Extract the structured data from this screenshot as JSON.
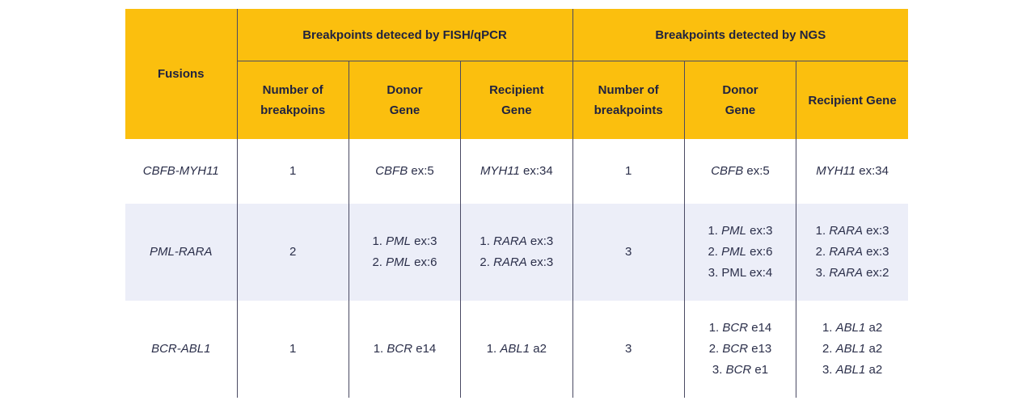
{
  "header": {
    "fusions": "Fusions",
    "group_fish": "Breakpoints deteced by FISH/qPCR",
    "group_ngs": "Breakpoints detected by NGS",
    "fish_cols": [
      {
        "l1": "Number of",
        "l2": "breakpoins"
      },
      {
        "l1": "Donor",
        "l2": "Gene"
      },
      {
        "l1": "Recipient",
        "l2": "Gene"
      }
    ],
    "ngs_cols": [
      {
        "l1": "Number of",
        "l2": "breakpoints"
      },
      {
        "l1": "Donor",
        "l2": "Gene"
      },
      {
        "l1": "Recipient Gene",
        "l2": ""
      }
    ]
  },
  "rows": [
    {
      "fusion": "CBFB-MYH11",
      "fish_n": "1",
      "fish_donor": [
        {
          "gene": "CBFB",
          "site": "ex:5"
        }
      ],
      "fish_recipient": [
        {
          "gene": "MYH11",
          "site": "ex:34"
        }
      ],
      "ngs_n": "1",
      "ngs_donor": [
        {
          "gene": "CBFB",
          "site": "ex:5"
        }
      ],
      "ngs_recipient": [
        {
          "gene": "MYH11",
          "site": "ex:34"
        }
      ]
    },
    {
      "fusion": "PML-RARA",
      "fish_n": "2",
      "fish_donor": [
        {
          "num": "1.",
          "gene": "PML",
          "site": "ex:3"
        },
        {
          "num": "2.",
          "gene": "PML",
          "site": "ex:6"
        }
      ],
      "fish_recipient": [
        {
          "num": "1.",
          "gene": "RARA",
          "site": "ex:3"
        },
        {
          "num": "2.",
          "gene": "RARA",
          "site": "ex:3"
        }
      ],
      "ngs_n": "3",
      "ngs_donor": [
        {
          "num": "1.",
          "gene": "PML",
          "site": "ex:3"
        },
        {
          "num": "2.",
          "gene": "PML",
          "site": "ex:6"
        },
        {
          "num": "3.",
          "gene": "PML",
          "site": "ex:4",
          "plain": true
        }
      ],
      "ngs_recipient": [
        {
          "num": "1.",
          "gene": "RARA",
          "site": "ex:3"
        },
        {
          "num": "2.",
          "gene": "RARA",
          "site": "ex:3"
        },
        {
          "num": "3.",
          "gene": "RARA",
          "site": "ex:2"
        }
      ]
    },
    {
      "fusion": "BCR-ABL1",
      "fish_n": "1",
      "fish_donor": [
        {
          "num": "1.",
          "gene": "BCR",
          "site": "e14"
        }
      ],
      "fish_recipient": [
        {
          "num": "1.",
          "gene": "ABL1",
          "site": "a2"
        }
      ],
      "ngs_n": "3",
      "ngs_donor": [
        {
          "num": "1.",
          "gene": "BCR",
          "site": "e14"
        },
        {
          "num": "2.",
          "gene": "BCR",
          "site": "e13"
        },
        {
          "num": "3.",
          "gene": "BCR",
          "site": "e1"
        }
      ],
      "ngs_recipient": [
        {
          "num": "1.",
          "gene": "ABL1",
          "site": "a2"
        },
        {
          "num": "2.",
          "gene": "ABL1",
          "site": "a2"
        },
        {
          "num": "3.",
          "gene": "ABL1",
          "site": "a2"
        }
      ]
    }
  ]
}
